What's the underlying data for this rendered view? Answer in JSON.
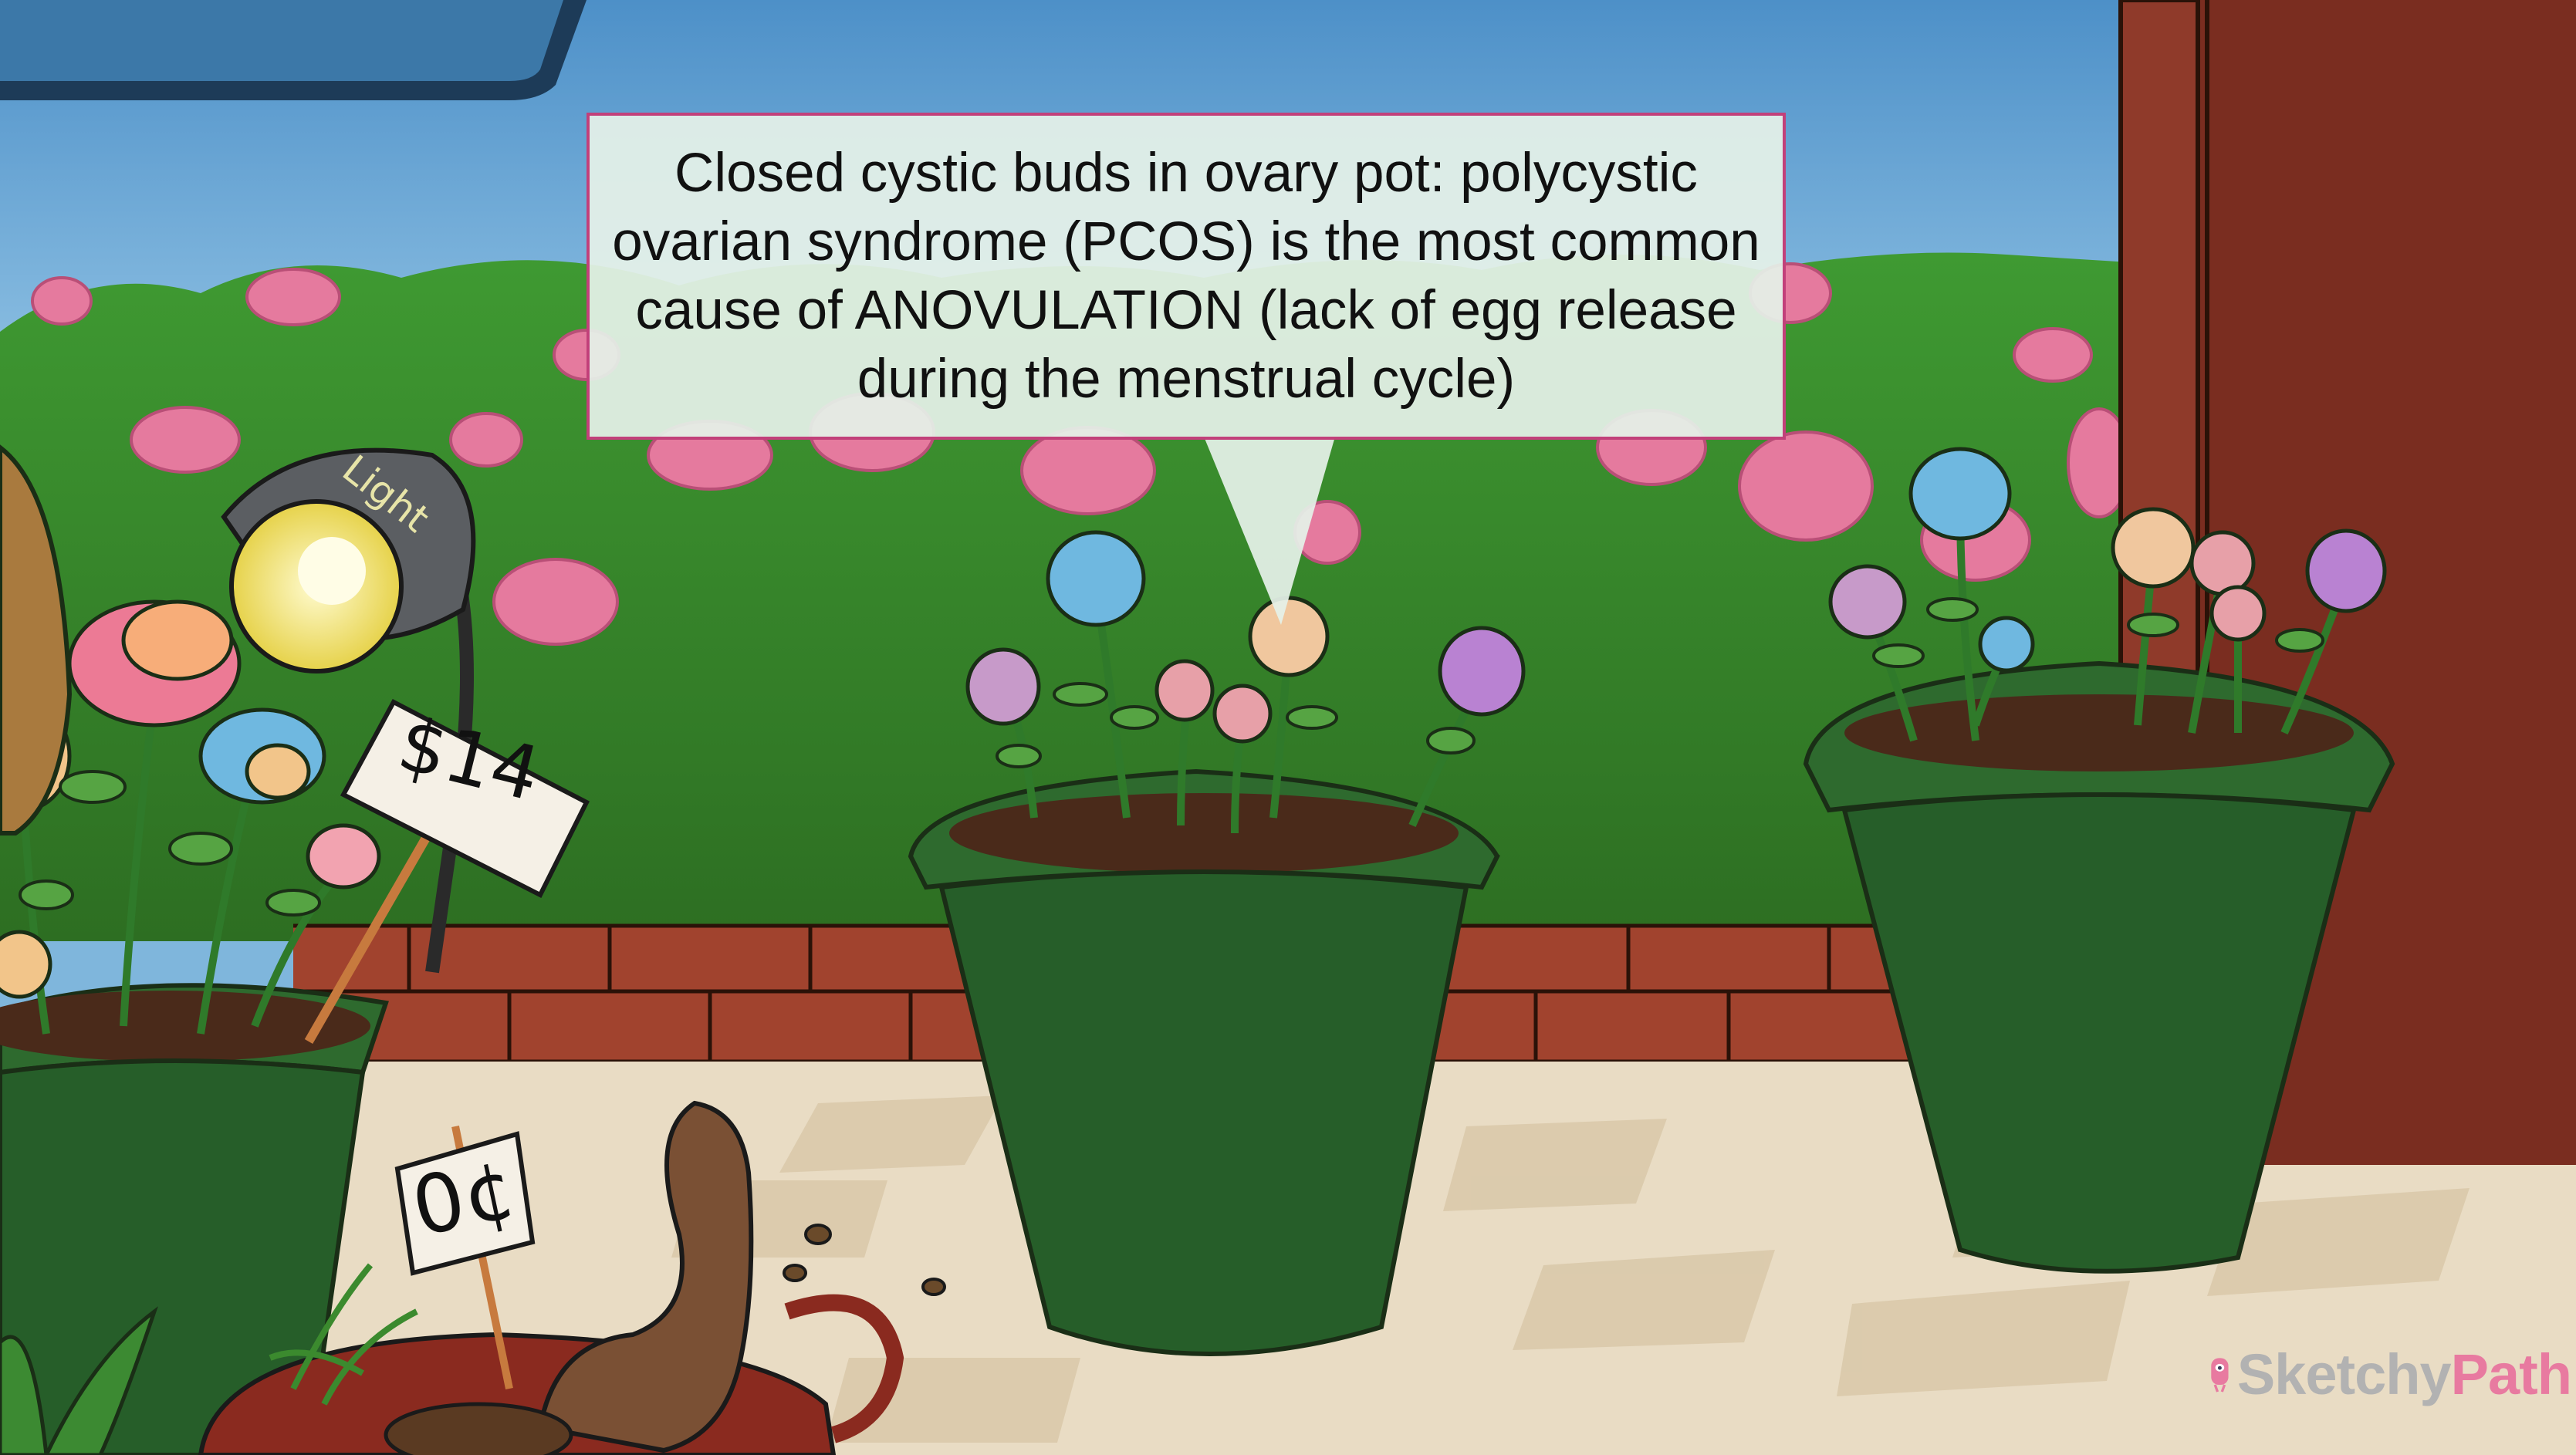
{
  "callout": {
    "text": "Closed cystic buds in ovary pot: polycystic ovarian syndrome (PCOS) is the most common cause of ANOVULATION (lack of egg release during the menstrual cycle)"
  },
  "signs": {
    "price_main": "$14",
    "price_small": "0¢",
    "lamp_label": "Light"
  },
  "brand": {
    "name_part1": "Sketchy",
    "name_part2": "Path",
    "icon": "sketchy-mascot-icon"
  },
  "colors": {
    "callout_border": "#c2407a",
    "brand_pink": "#e87aa0",
    "brand_gray": "#b2b2b2"
  }
}
